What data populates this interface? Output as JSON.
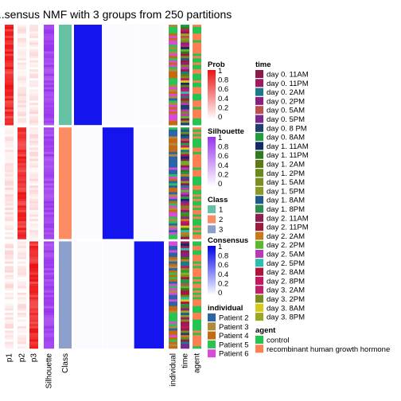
{
  "chart_data": {
    "type": "heatmap",
    "title": "...sensus NMF with 3 groups from 250 partitions",
    "groups": [
      "1",
      "2",
      "3"
    ],
    "group_sizes": [
      45,
      50,
      48
    ],
    "column_labels": [
      "p1",
      "p2",
      "p3",
      "Silhouette",
      "Class",
      "individual",
      "time",
      "agent"
    ],
    "class_colors": [
      "#66C2A5",
      "#FC8D62",
      "#8DA0CB"
    ],
    "legends": {
      "prob": {
        "title": "Prob",
        "ticks": [
          "1",
          "0.8",
          "0.6",
          "0.4",
          "0.2",
          "0"
        ],
        "color_low": "#ffffff",
        "color_high": "#ee1111"
      },
      "silhouette": {
        "title": "Silhouette",
        "ticks": [
          "1",
          "0.8",
          "0.6",
          "0.4",
          "0.2",
          "0"
        ],
        "color_low": "#ffffff",
        "color_high": "#9933ee"
      },
      "class": {
        "title": "Class",
        "items": [
          {
            "label": "1",
            "color": "#66C2A5"
          },
          {
            "label": "2",
            "color": "#FC8D62"
          },
          {
            "label": "3",
            "color": "#8DA0CB"
          }
        ]
      },
      "consensus": {
        "title": "Consensus",
        "ticks": [
          "1",
          "0.8",
          "0.6",
          "0.4",
          "0.2",
          "0"
        ],
        "color_low": "#ffffff",
        "color_high": "#0000ee"
      },
      "individual": {
        "title": "individual",
        "items": [
          {
            "label": "Patient 2",
            "color": "#2B65A8"
          },
          {
            "label": "Patient 3",
            "color": "#B08A3E"
          },
          {
            "label": "Patient 4",
            "color": "#C46A10"
          },
          {
            "label": "Patient 5",
            "color": "#2BC253"
          },
          {
            "label": "Patient 6",
            "color": "#D84BD8"
          }
        ]
      },
      "time": {
        "title": "time",
        "items": [
          {
            "label": "day 0. 11AM",
            "color": "#8B1A4A"
          },
          {
            "label": "day 0. 11PM",
            "color": "#A0195F"
          },
          {
            "label": "day 0. 2AM",
            "color": "#1A7A8A"
          },
          {
            "label": "day 0. 2PM",
            "color": "#8A2080"
          },
          {
            "label": "day 0. 5AM",
            "color": "#C0504E"
          },
          {
            "label": "day 0. 5PM",
            "color": "#7A2A8E"
          },
          {
            "label": "day 0. 8 PM",
            "color": "#1F3F6E"
          },
          {
            "label": "day 0. 8AM",
            "color": "#1E9E3E"
          },
          {
            "label": "day 1. 11AM",
            "color": "#142A66"
          },
          {
            "label": "day 1. 11PM",
            "color": "#2E7A1E"
          },
          {
            "label": "day 1. 2AM",
            "color": "#5E7A12"
          },
          {
            "label": "day 1. 2PM",
            "color": "#6A8A1A"
          },
          {
            "label": "day 1. 5AM",
            "color": "#7A8E22"
          },
          {
            "label": "day 1. 5PM",
            "color": "#8A9A26"
          },
          {
            "label": "day 1. 8AM",
            "color": "#1E5A8E"
          },
          {
            "label": "day 1. 8PM",
            "color": "#2E8E4E"
          },
          {
            "label": "day 2. 11AM",
            "color": "#8E1E4E"
          },
          {
            "label": "day 2. 11PM",
            "color": "#9E1A3A"
          },
          {
            "label": "day 2. 2AM",
            "color": "#C87A1A"
          },
          {
            "label": "day 2. 2PM",
            "color": "#5AB82A"
          },
          {
            "label": "day 2. 5AM",
            "color": "#B83AB8"
          },
          {
            "label": "day 2. 5PM",
            "color": "#2ABFAF"
          },
          {
            "label": "day 2. 8AM",
            "color": "#B0123A"
          },
          {
            "label": "day 2. 8PM",
            "color": "#C2185E"
          },
          {
            "label": "day 3. 2AM",
            "color": "#C41E6A"
          },
          {
            "label": "day 3. 2PM",
            "color": "#7A8A1E"
          },
          {
            "label": "day 3. 8AM",
            "color": "#D8C81A"
          },
          {
            "label": "day 3. 8PM",
            "color": "#9AA81E"
          }
        ]
      },
      "agent": {
        "title": "agent",
        "items": [
          {
            "label": "control",
            "color": "#22C452"
          },
          {
            "label": "recombinant human growth hormone",
            "color": "#FF7F50"
          }
        ]
      }
    }
  }
}
